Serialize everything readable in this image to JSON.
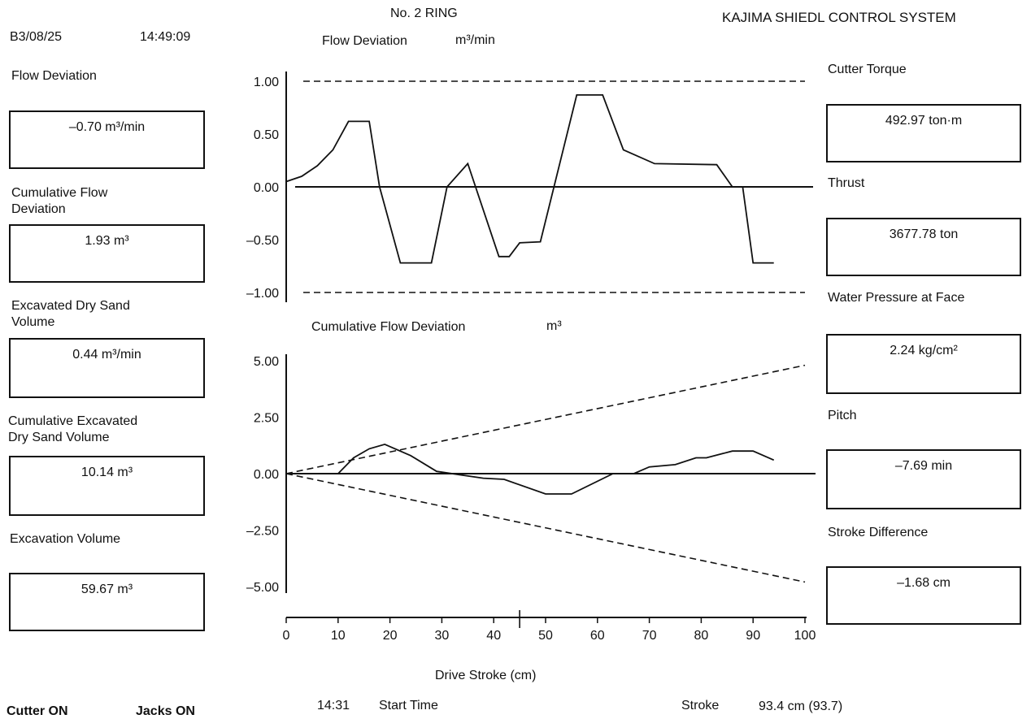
{
  "header": {
    "date": "B3/08/25",
    "time": "14:49:09",
    "ring": "No.  2 RING",
    "system": "KAJIMA SHIEDL CONTROL SYSTEM"
  },
  "left_panel": [
    {
      "label": "Flow Deviation",
      "value": "–0.70 m³/min"
    },
    {
      "label": "Cumulative Flow\nDeviation",
      "value": "1.93 m³"
    },
    {
      "label": "Excavated Dry Sand\nVolume",
      "value": "0.44 m³/min"
    },
    {
      "label": "Cumulative Excavated\nDry Sand Volume",
      "value": "10.14 m³"
    },
    {
      "label": "Excavation Volume",
      "value": "59.67 m³"
    }
  ],
  "right_panel": [
    {
      "label": "Cutter Torque",
      "value": "492.97 ton·m"
    },
    {
      "label": "Thrust",
      "value": "3677.78 ton"
    },
    {
      "label": "Water Pressure at Face",
      "value": "2.24 kg/cm²"
    },
    {
      "label": "Pitch",
      "value": "–7.69 min"
    },
    {
      "label": "Stroke Difference",
      "value": "–1.68 cm"
    }
  ],
  "footer": {
    "cutter": "Cutter ON",
    "jacks": "Jacks ON",
    "start_time_value": "14:31",
    "start_time_label": "Start Time",
    "stroke_label": "Stroke",
    "stroke_value": "93.4 cm (93.7)",
    "x_axis_label": "Drive Stroke (cm)"
  },
  "chart_data": [
    {
      "type": "line",
      "title": "Flow Deviation",
      "unit": "m³/min",
      "ylim": [
        -1.0,
        1.0
      ],
      "yticks": [
        "1.00",
        "0.50",
        "0.00",
        "–0.50",
        "–1.00"
      ],
      "limits": [
        1.0,
        -1.0
      ],
      "series": [
        {
          "x": [
            0,
            3,
            6,
            9,
            12,
            13,
            16,
            18,
            22,
            28,
            31,
            35,
            41,
            43,
            45,
            49,
            56,
            61,
            65,
            71,
            83,
            86,
            88,
            90,
            94
          ],
          "y": [
            0.05,
            0.1,
            0.2,
            0.35,
            0.62,
            0.62,
            0.62,
            0.0,
            -0.72,
            -0.72,
            0.0,
            0.22,
            -0.66,
            -0.66,
            -0.53,
            -0.52,
            0.87,
            0.87,
            0.35,
            0.22,
            0.21,
            0.0,
            0.0,
            -0.72,
            -0.72
          ]
        }
      ]
    },
    {
      "type": "line",
      "title": "Cumulative Flow Deviation",
      "unit": "m³",
      "ylim": [
        -5.0,
        5.0
      ],
      "yticks": [
        "5.00",
        "2.50",
        "0.00",
        "–2.50",
        "–5.00"
      ],
      "xlim": [
        0,
        100
      ],
      "xticks": [
        "0",
        "10",
        "20",
        "30",
        "40",
        "50",
        "60",
        "70",
        "80",
        "90",
        "100"
      ],
      "limit_lines": [
        {
          "x": [
            0,
            100
          ],
          "y": [
            0,
            4.8
          ]
        },
        {
          "x": [
            0,
            100
          ],
          "y": [
            0,
            -4.8
          ]
        }
      ],
      "series": [
        {
          "x": [
            10,
            13,
            16,
            19,
            24,
            29,
            38,
            42,
            50,
            55,
            63,
            65,
            67,
            70,
            75,
            79,
            81,
            86,
            90,
            94
          ],
          "y": [
            0.0,
            0.7,
            1.1,
            1.3,
            0.8,
            0.1,
            -0.2,
            -0.25,
            -0.9,
            -0.9,
            0.0,
            0.0,
            0.0,
            0.3,
            0.4,
            0.7,
            0.7,
            1.0,
            1.0,
            0.6
          ]
        }
      ]
    }
  ]
}
